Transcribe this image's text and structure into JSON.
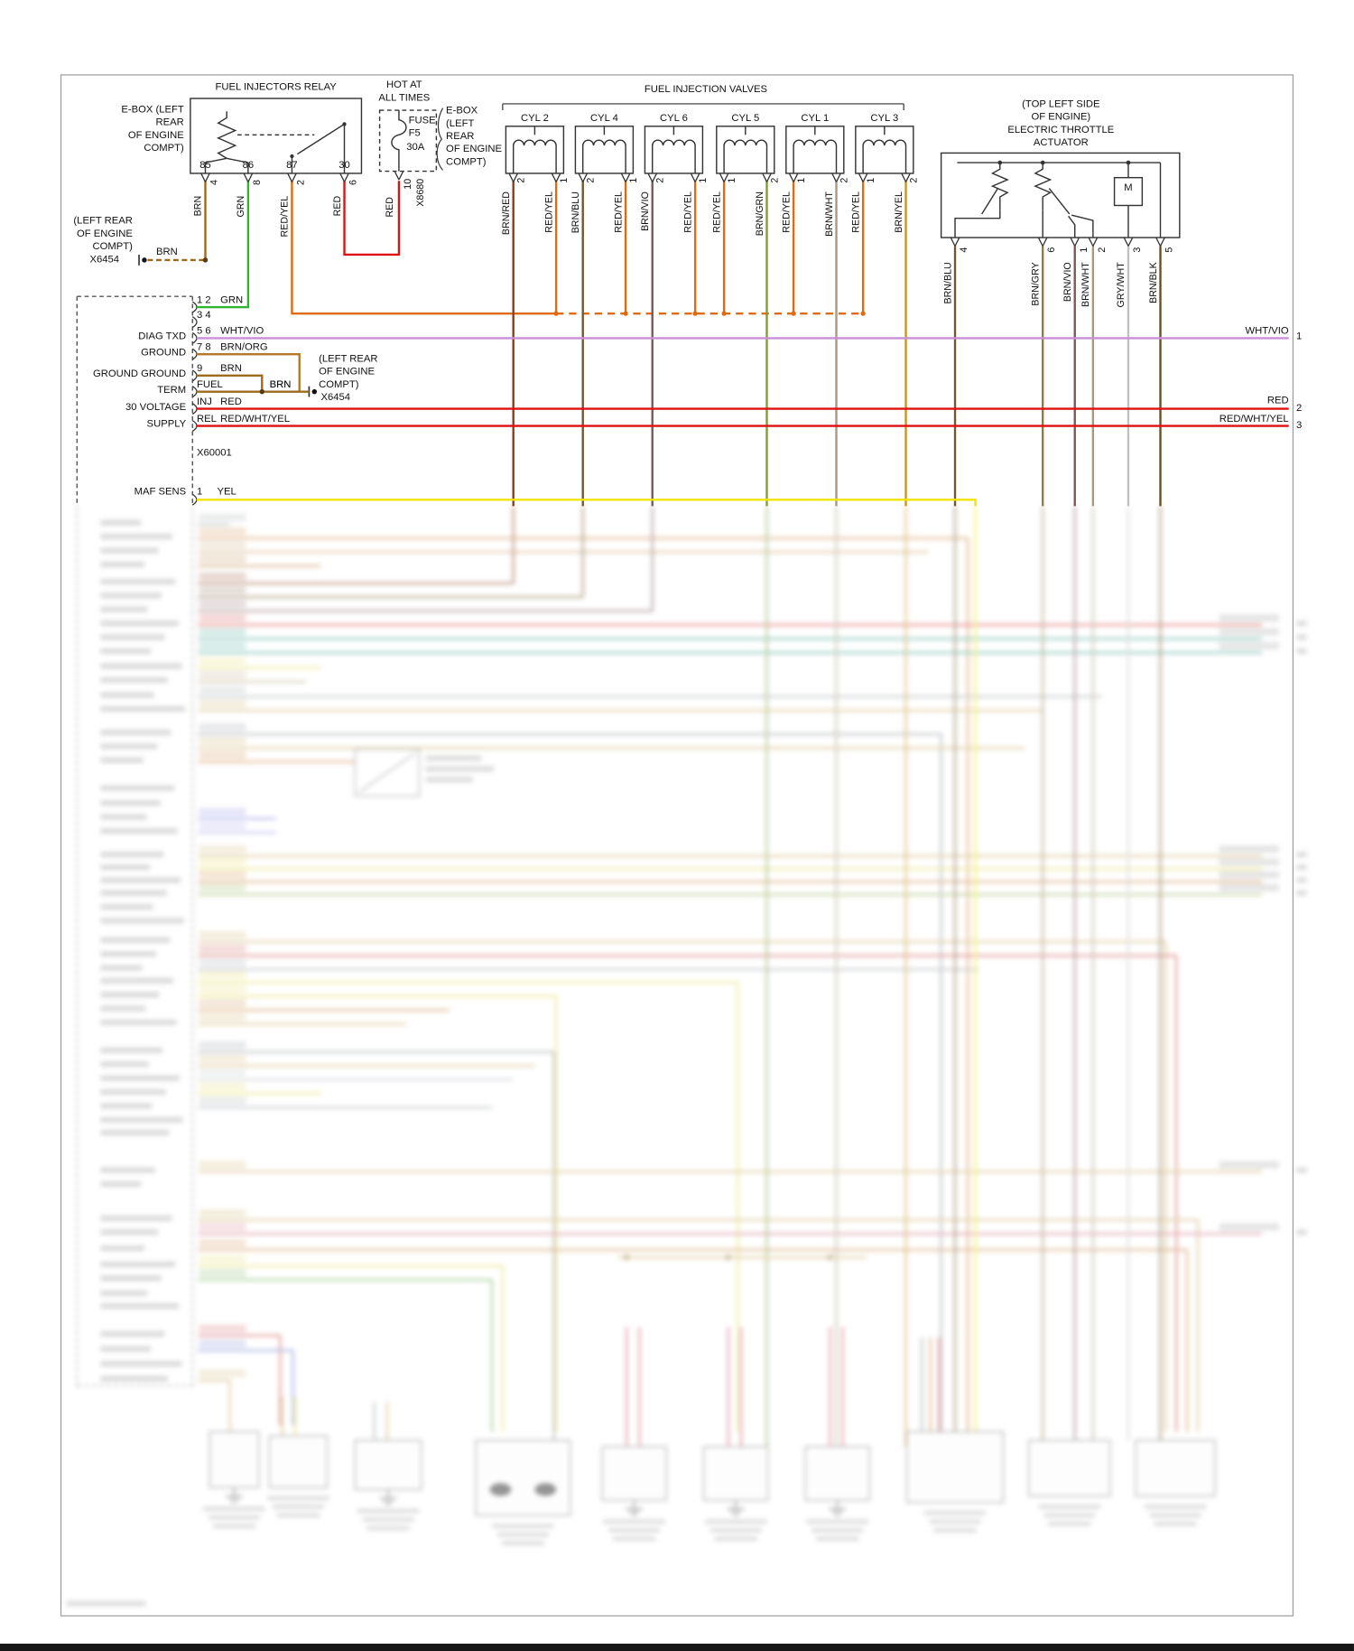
{
  "relay": {
    "title": "FUEL INJECTORS RELAY",
    "ebox_label_lines": [
      "E-BOX (LEFT",
      "REAR",
      "OF ENGINE",
      "COMPT)"
    ],
    "pins": [
      {
        "pin": "85",
        "wire_num": "4",
        "color_label": "BRN"
      },
      {
        "pin": "86",
        "wire_num": "8",
        "color_label": "GRN"
      },
      {
        "pin": "87",
        "wire_num": "2",
        "color_label": "RED/YEL"
      },
      {
        "pin": "30",
        "wire_num": "6",
        "color_label": "RED"
      }
    ]
  },
  "fuse": {
    "hot_lines": [
      "HOT AT",
      "ALL TIMES"
    ],
    "label_lines": [
      "FUSE",
      "F5",
      "30A"
    ],
    "pin": "10",
    "color_label": "RED",
    "connector": "X8680",
    "ebox_label_lines": [
      "E-BOX",
      "(LEFT",
      "REAR",
      "OF ENGINE",
      "COMPT)"
    ]
  },
  "valves": {
    "title": "FUEL INJECTION VALVES",
    "cylinders": [
      {
        "label": "CYL 2",
        "left_pin": "2",
        "right_pin": "1",
        "left_color": "BRN/RED",
        "right_color": "RED/YEL"
      },
      {
        "label": "CYL 4",
        "left_pin": "2",
        "right_pin": "1",
        "left_color": "BRN/BLU",
        "right_color": "RED/YEL"
      },
      {
        "label": "CYL 6",
        "left_pin": "2",
        "right_pin": "1",
        "left_color": "BRN/VIO",
        "right_color": "RED/YEL"
      },
      {
        "label": "CYL 5",
        "left_pin": "1",
        "right_pin": "2",
        "left_color": "RED/YEL",
        "right_color": "BRN/GRN"
      },
      {
        "label": "CYL 1",
        "left_pin": "1",
        "right_pin": "2",
        "left_color": "RED/YEL",
        "right_color": "BRN/WHT"
      },
      {
        "label": "CYL 3",
        "left_pin": "1",
        "right_pin": "2",
        "left_color": "RED/YEL",
        "right_color": "BRN/YEL"
      }
    ]
  },
  "throttle": {
    "title_lines": [
      "(TOP LEFT SIDE",
      "OF ENGINE)",
      "ELECTRIC THROTTLE",
      "ACTUATOR"
    ],
    "motor_label": "M",
    "pins": [
      {
        "pin": "4",
        "color_label": "BRN/BLU"
      },
      {
        "pin": "6",
        "color_label": "BRN/GRY"
      },
      {
        "pin": "1",
        "color_label": "BRN/VIO"
      },
      {
        "pin": "2",
        "color_label": "BRN/WHT"
      },
      {
        "pin": "3",
        "color_label": "GRY/WHT"
      },
      {
        "pin": "5",
        "color_label": "BRN/BLK"
      }
    ]
  },
  "x6454_top": {
    "location_lines": [
      "(LEFT REAR",
      "OF ENGINE",
      "COMPT)"
    ],
    "name": "X6454",
    "wire_label": "BRN"
  },
  "x6454_mid": {
    "location_lines": [
      "(LEFT REAR",
      "OF ENGINE",
      "COMPT)"
    ],
    "name": "X6454",
    "wire_label": "BRN"
  },
  "ecu": {
    "left_labels": [
      "DIAG TXD",
      "GROUND",
      "GROUND GROUND",
      "TERM",
      "30 VOLTAGE",
      "SUPPLY"
    ],
    "rows": [
      {
        "pin": "1 2",
        "color_label": "GRN"
      },
      {
        "pin": "3 4",
        "color_label": ""
      },
      {
        "pin": "5 6",
        "color_label": "WHT/VIO"
      },
      {
        "pin": "7 8",
        "color_label": "BRN/ORG"
      },
      {
        "pin": "9",
        "color_label": "BRN"
      },
      {
        "pin": "FUEL",
        "color_label": "BRN"
      },
      {
        "pin": "INJ",
        "color_label": "RED"
      },
      {
        "pin": "REL",
        "color_label": "RED/WHT/YEL"
      }
    ],
    "connector_name": "X60001",
    "maf_label": "MAF SENS",
    "maf_pin": "1",
    "maf_color_label": "YEL"
  },
  "right_edge": [
    {
      "color_label": "WHT/VIO",
      "wire_num": "1"
    },
    {
      "color_label": "RED",
      "wire_num": "2"
    },
    {
      "color_label": "RED/WHT/YEL",
      "wire_num": "3"
    }
  ],
  "colors": {
    "BRN": "#9a6b1f",
    "GRN": "#2fb52f",
    "RED_YEL": "#e06a10",
    "RED": "#dd1111",
    "WHT_VIO": "#c98fd6",
    "BRN_ORG": "#b5772a",
    "YEL": "#f0e400",
    "BRN_RED": "#8a3c14",
    "BRN_BLU": "#75552f",
    "BRN_VIO": "#7c5558",
    "BRN_GRN": "#7f9a38",
    "BRN_WHT": "#a59a80",
    "BRN_YEL": "#c99222",
    "BRN_GRY": "#8d7a55",
    "GRY_WHT": "#c0c0c0",
    "BRN_BLK": "#6b4d20",
    "RED_WHT_YEL": "#dd1111"
  }
}
